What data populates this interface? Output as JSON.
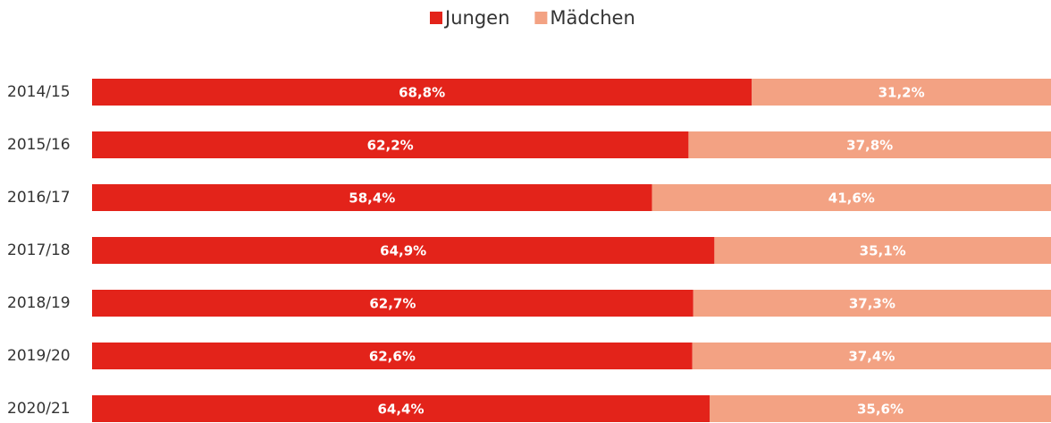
{
  "chart_data": {
    "type": "stacked-barh",
    "categories": [
      "2014/15",
      "2015/16",
      "2016/17",
      "2017/18",
      "2018/19",
      "2019/20",
      "2020/21"
    ],
    "series": [
      {
        "name": "Jungen",
        "color": "#e3231a",
        "values": [
          68.8,
          62.2,
          58.4,
          64.9,
          62.7,
          62.6,
          64.4
        ],
        "value_labels": [
          "68,8%",
          "62,2%",
          "58,4%",
          "64,9%",
          "62,7%",
          "62,6%",
          "64,4%"
        ]
      },
      {
        "name": "Mädchen",
        "color": "#f3a283",
        "values": [
          31.2,
          37.8,
          41.6,
          35.1,
          37.3,
          37.4,
          35.6
        ],
        "value_labels": [
          "31,2%",
          "37,8%",
          "41,6%",
          "35,1%",
          "37,3%",
          "37,4%",
          "35,6%"
        ]
      }
    ],
    "xlim": [
      0,
      100
    ],
    "legend": "top"
  }
}
